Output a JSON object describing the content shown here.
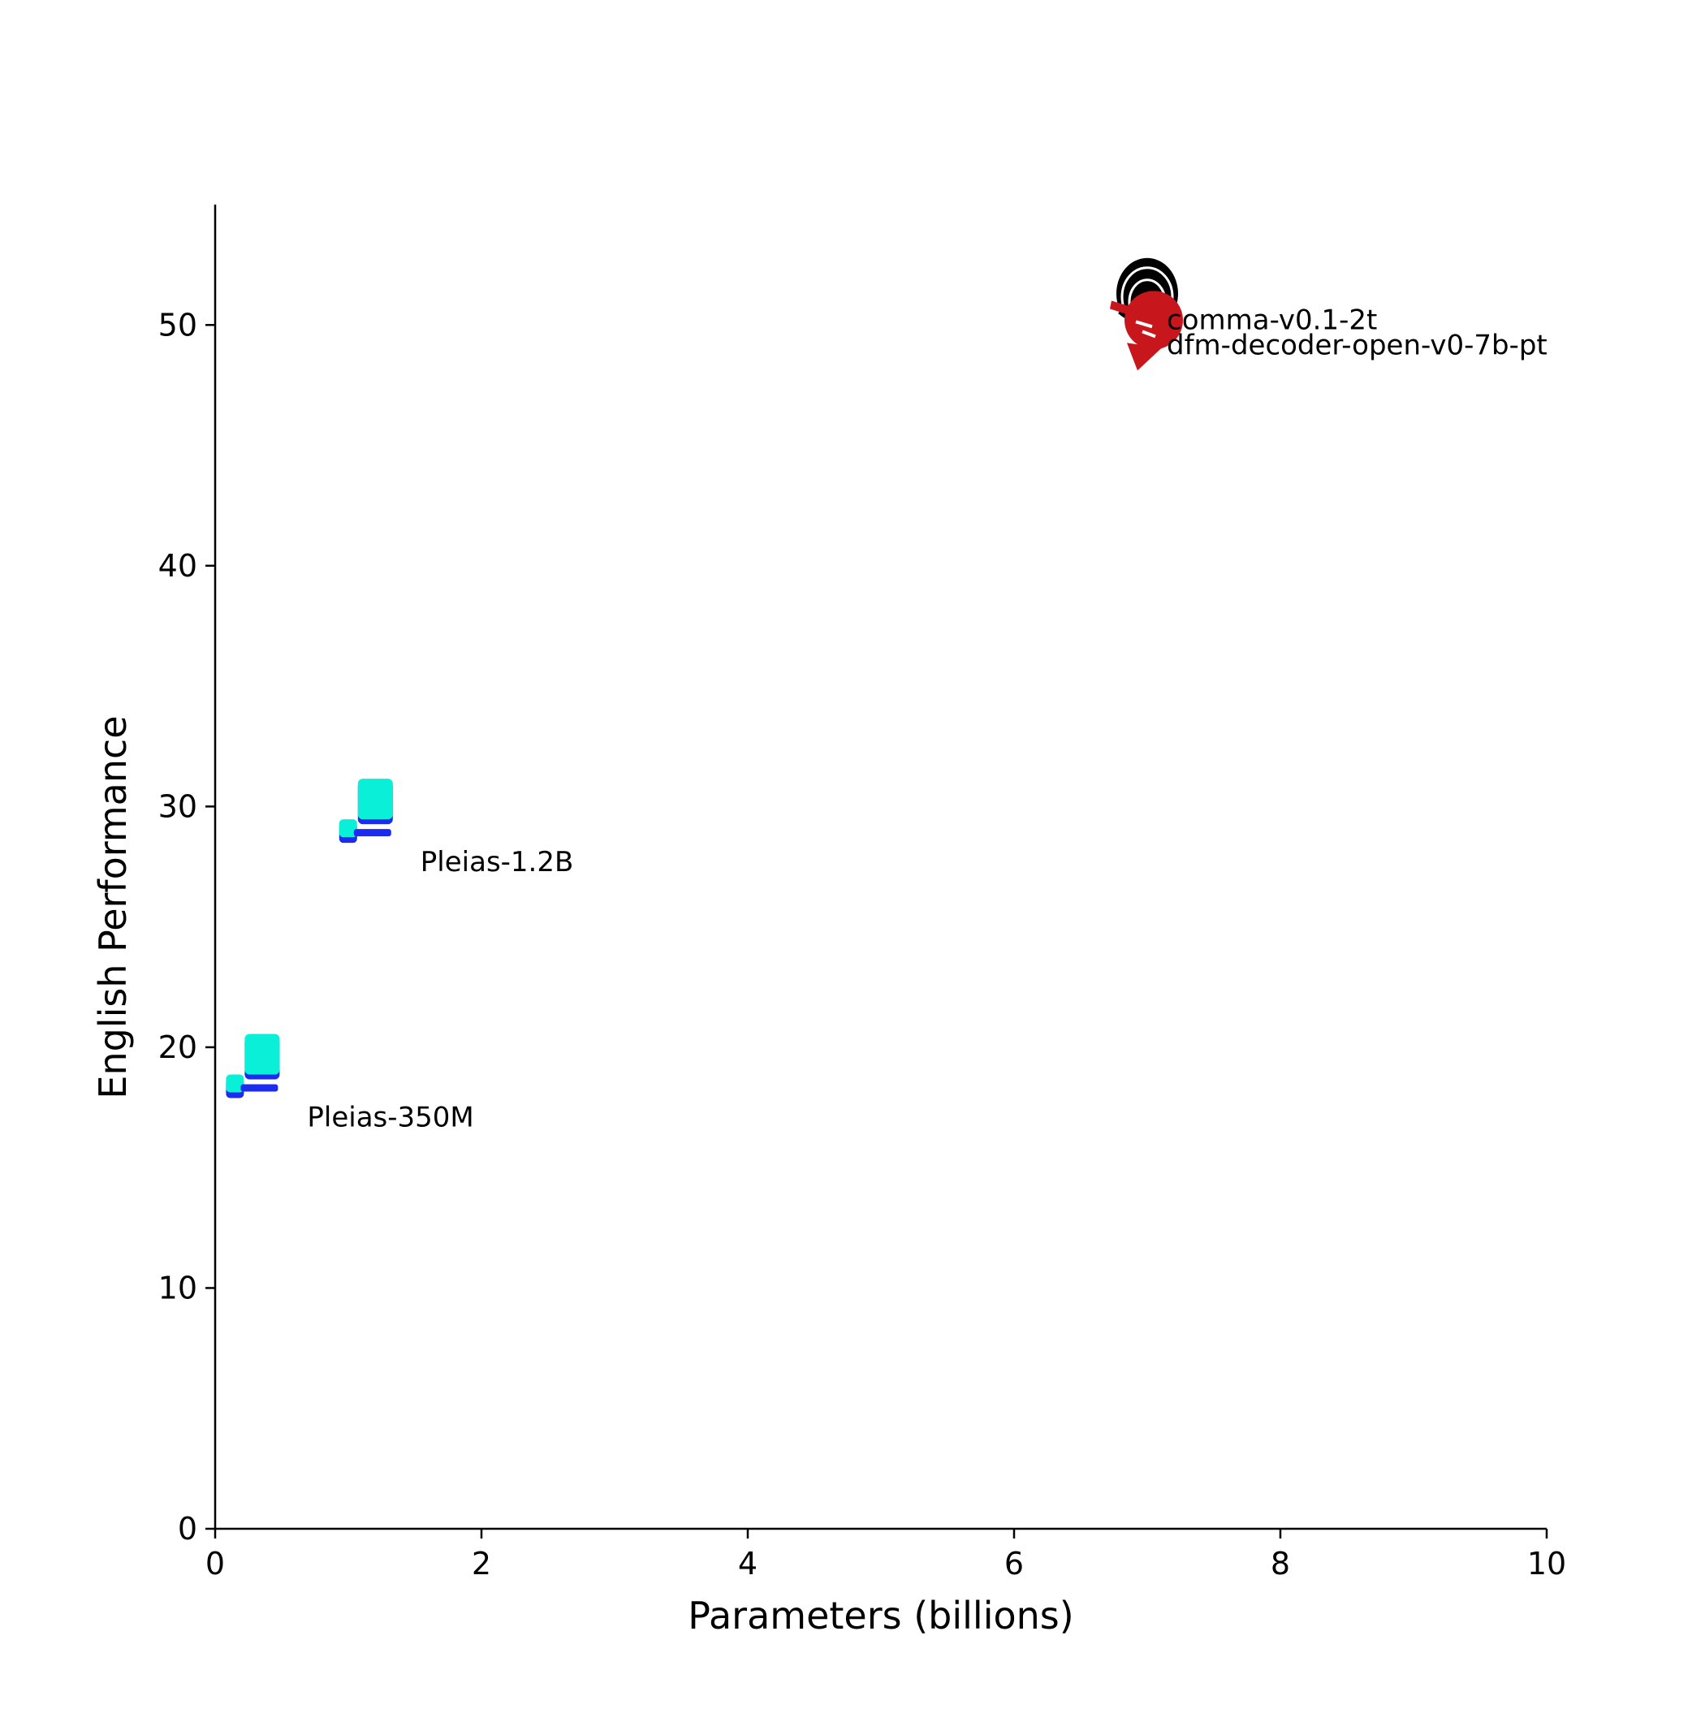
{
  "chart_data": {
    "type": "scatter",
    "title": "",
    "xlabel": "Parameters (billions)",
    "ylabel": "English Performance",
    "xlim": [
      0,
      10
    ],
    "ylim": [
      0,
      55
    ],
    "xticks": [
      0,
      2,
      4,
      6,
      8,
      10
    ],
    "yticks": [
      0,
      10,
      20,
      30,
      40,
      50
    ],
    "grid": false,
    "points": [
      {
        "label": "Pleias-350M",
        "x": 0.35,
        "y": 18.8,
        "marker": "pleias-logo-icon",
        "colors": [
          "#0af0d8",
          "#1b2cf0"
        ]
      },
      {
        "label": "Pleias-1.2B",
        "x": 1.2,
        "y": 29.4,
        "marker": "pleias-logo-icon",
        "colors": [
          "#0af0d8",
          "#1b2cf0"
        ]
      },
      {
        "label": "comma-v0.1-2t",
        "x": 7.0,
        "y": 51.3,
        "marker": "comma-logo-icon",
        "colors": [
          "#000000"
        ]
      },
      {
        "label": "dfm-decoder-open-v0-7b-pt",
        "x": 7.0,
        "y": 50.2,
        "marker": "dfm-logo-icon",
        "colors": [
          "#c8161d"
        ]
      }
    ]
  }
}
